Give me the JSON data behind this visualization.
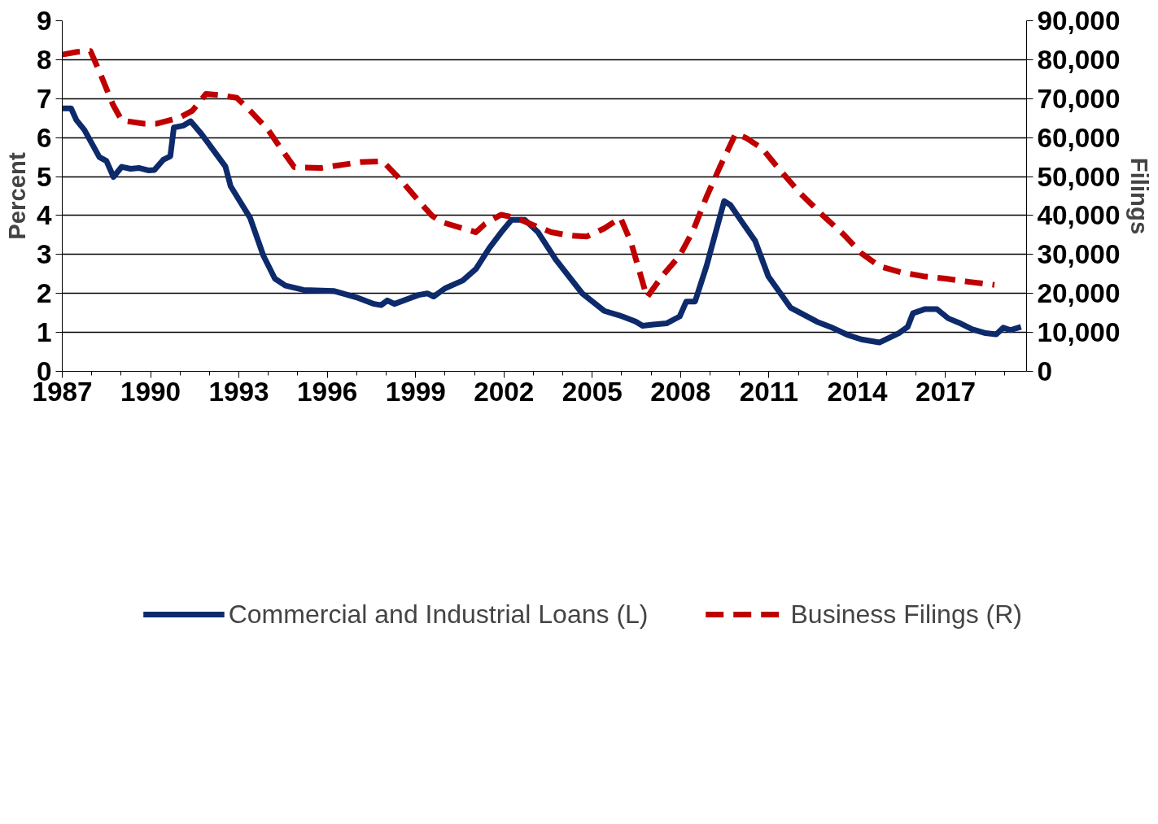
{
  "chart_data": {
    "type": "line",
    "xlabel": null,
    "ylabel": "Percent",
    "y2label": "Filings",
    "xlim": [
      1987,
      2019.75
    ],
    "xticks": [
      1987,
      {
        "value": 1988,
        "label": null
      },
      {
        "value": 1989,
        "label": null
      },
      1990,
      {
        "value": 1991,
        "label": null
      },
      {
        "value": 1992,
        "label": null
      },
      1993,
      {
        "value": 1994,
        "label": null
      },
      {
        "value": 1995,
        "label": null
      },
      1996,
      {
        "value": 1997,
        "label": null
      },
      {
        "value": 1998,
        "label": null
      },
      1999,
      {
        "value": 2000,
        "label": null
      },
      {
        "value": 2001,
        "label": null
      },
      2002,
      {
        "value": 2003,
        "label": null
      },
      {
        "value": 2004,
        "label": null
      },
      2005,
      {
        "value": 2006,
        "label": null
      },
      {
        "value": 2007,
        "label": null
      },
      2008,
      {
        "value": 2009,
        "label": null
      },
      {
        "value": 2010,
        "label": null
      },
      2011,
      {
        "value": 2012,
        "label": null
      },
      {
        "value": 2013,
        "label": null
      },
      2014,
      {
        "value": 2015,
        "label": null
      },
      {
        "value": 2016,
        "label": null
      },
      2017,
      {
        "value": 2018,
        "label": null
      },
      {
        "value": 2019,
        "label": null
      }
    ],
    "ylim": [
      0,
      9
    ],
    "yticks": [
      0,
      1,
      2,
      3,
      4,
      5,
      6,
      7,
      8,
      9
    ],
    "y2lim": [
      0,
      90000
    ],
    "y2ticks": [
      0,
      {
        "value": 10000,
        "label": "10,000"
      },
      {
        "value": 20000,
        "label": "20,000"
      },
      {
        "value": 30000,
        "label": "30,000"
      },
      {
        "value": 40000,
        "label": "40,000"
      },
      {
        "value": 50000,
        "label": "50,000"
      },
      {
        "value": 60000,
        "label": "60,000"
      },
      {
        "value": 70000,
        "label": "70,000"
      },
      {
        "value": 80000,
        "label": "80,000"
      },
      {
        "value": 90000,
        "label": "90,000"
      }
    ],
    "grid": "y",
    "legend": "bottom",
    "series": [
      {
        "name": "Commercial and Industrial Loans (L)",
        "color": "#0d2a6b",
        "line_style": "solid",
        "x": [
          1987.0,
          1987.3,
          1987.48,
          1987.75,
          1988.26,
          1988.5,
          1988.74,
          1989.02,
          1989.32,
          1989.62,
          1989.92,
          1990.13,
          1990.43,
          1990.67,
          1990.79,
          1991.12,
          1991.36,
          1991.72,
          1992.54,
          1992.72,
          1993.38,
          1993.83,
          1994.22,
          1994.58,
          1995.19,
          1996.24,
          1996.99,
          1997.59,
          1997.83,
          1998.04,
          1998.28,
          1999.1,
          1999.4,
          1999.61,
          2000.0,
          2000.6,
          2001.05,
          2001.5,
          2001.96,
          2002.26,
          2002.71,
          2003.16,
          2003.76,
          2004.66,
          2005.41,
          2006.02,
          2006.47,
          2006.71,
          2007.07,
          2007.52,
          2007.97,
          2008.19,
          2008.49,
          2008.88,
          2009.48,
          2009.69,
          2010.08,
          2010.53,
          2010.98,
          2011.74,
          2012.64,
          2013.09,
          2013.69,
          2014.14,
          2014.75,
          2015.41,
          2015.71,
          2015.89,
          2016.31,
          2016.7,
          2017.09,
          2017.45,
          2017.91,
          2018.36,
          2018.72,
          2018.96,
          2019.2,
          2019.56
        ],
        "values": [
          6.75,
          6.75,
          6.45,
          6.2,
          5.5,
          5.4,
          4.99,
          5.25,
          5.2,
          5.22,
          5.16,
          5.17,
          5.43,
          5.52,
          6.26,
          6.31,
          6.42,
          6.1,
          5.26,
          4.75,
          3.94,
          2.97,
          2.38,
          2.2,
          2.09,
          2.06,
          1.9,
          1.73,
          1.7,
          1.82,
          1.73,
          1.96,
          2.0,
          1.92,
          2.13,
          2.33,
          2.63,
          3.16,
          3.62,
          3.89,
          3.89,
          3.57,
          2.87,
          2.0,
          1.55,
          1.41,
          1.28,
          1.17,
          1.2,
          1.23,
          1.41,
          1.79,
          1.79,
          2.7,
          4.37,
          4.27,
          3.84,
          3.35,
          2.44,
          1.63,
          1.27,
          1.14,
          0.93,
          0.82,
          0.74,
          0.98,
          1.14,
          1.49,
          1.6,
          1.6,
          1.36,
          1.25,
          1.08,
          0.98,
          0.95,
          1.12,
          1.06,
          1.14
        ]
      },
      {
        "name": "Business Filings (R)",
        "color": "#c00000",
        "line_style": "dashed",
        "axis": "y2",
        "x": [
          1987.0,
          1987.51,
          1987.96,
          1988.26,
          1988.72,
          1989.02,
          1989.77,
          1990.22,
          1990.97,
          1991.42,
          1991.88,
          1992.33,
          1992.93,
          1993.38,
          1993.98,
          1994.43,
          1994.88,
          1995.79,
          1996.39,
          1997.14,
          1997.89,
          1998.5,
          1999.1,
          1999.55,
          1999.85,
          2000.6,
          2001.05,
          2001.35,
          2001.9,
          2002.41,
          2003.01,
          2003.61,
          2004.21,
          2004.81,
          2005.41,
          2005.96,
          2006.32,
          2006.86,
          2007.37,
          2007.97,
          2008.43,
          2008.88,
          2009.33,
          2009.87,
          2010.23,
          2010.77,
          2011.29,
          2012.04,
          2012.79,
          2013.54,
          2014.14,
          2014.75,
          2015.5,
          2016.25,
          2017.0,
          2017.76,
          2018.66
        ],
        "values": [
          81300,
          82000,
          82200,
          77000,
          68500,
          64400,
          63600,
          63600,
          65100,
          66900,
          71200,
          70900,
          70200,
          66900,
          62100,
          57200,
          52400,
          52200,
          52900,
          53700,
          53900,
          49100,
          43800,
          40000,
          38400,
          36700,
          35700,
          37800,
          40200,
          39400,
          37500,
          35700,
          34900,
          34600,
          36700,
          39400,
          33000,
          19000,
          24400,
          29700,
          36200,
          44800,
          52400,
          61000,
          59900,
          57200,
          52400,
          45900,
          40300,
          35100,
          30300,
          27000,
          25400,
          24400,
          23800,
          23000,
          22200
        ]
      }
    ]
  }
}
